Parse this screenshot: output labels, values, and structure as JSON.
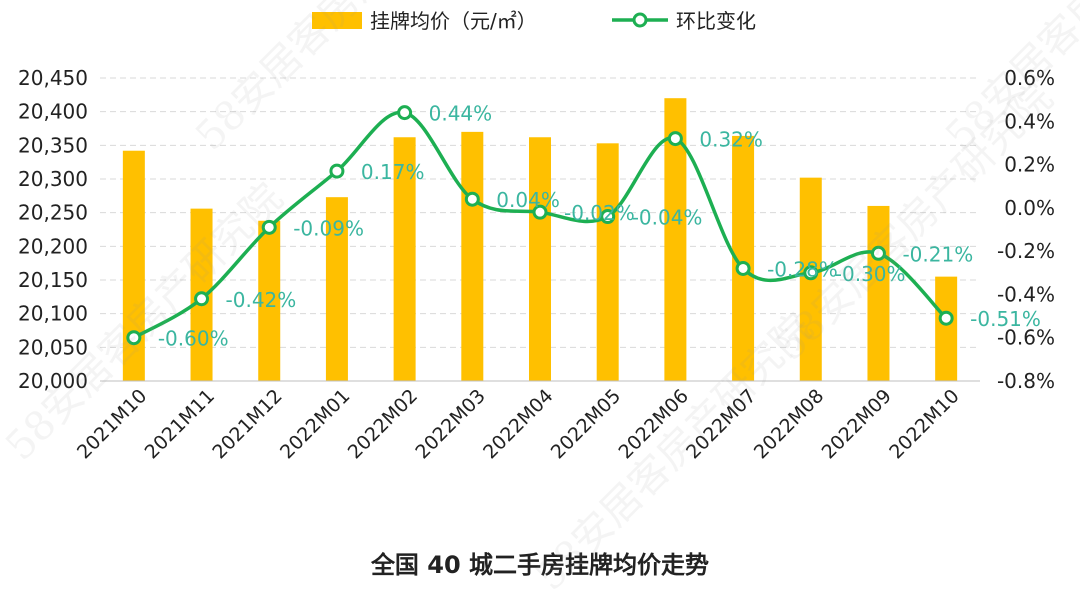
{
  "chart_data": {
    "type": "bar",
    "title": "全国 40 城二手房挂牌均价走势",
    "categories": [
      "2021M10",
      "2021M11",
      "2021M12",
      "2022M01",
      "2022M02",
      "2022M03",
      "2022M04",
      "2022M05",
      "2022M06",
      "2022M07",
      "2022M08",
      "2022M09",
      "2022M10"
    ],
    "series": [
      {
        "name": "挂牌均价（元/㎡）",
        "type": "bar",
        "axis": "left",
        "color": "#FFC000",
        "values": [
          20342,
          20256,
          20238,
          20273,
          20362,
          20370,
          20362,
          20353,
          20420,
          20364,
          20302,
          20260,
          20155
        ]
      },
      {
        "name": "环比变化",
        "type": "line",
        "axis": "right",
        "color": "#1DAF52",
        "values": [
          -0.6,
          -0.42,
          -0.09,
          0.17,
          0.44,
          0.04,
          -0.02,
          -0.04,
          0.32,
          -0.28,
          -0.3,
          -0.21,
          -0.51
        ],
        "labels": [
          "-0.60%",
          "-0.42%",
          "-0.09%",
          "0.17%",
          "0.44%",
          "0.04%",
          "-0.02%",
          "-0.04%",
          "0.32%",
          "-0.28%",
          "-0.30%",
          "-0.21%",
          "-0.51%"
        ]
      }
    ],
    "left_axis": {
      "ylim": [
        20000,
        20450
      ],
      "ticks": [
        20000,
        20050,
        20100,
        20150,
        20200,
        20250,
        20300,
        20350,
        20400,
        20450
      ],
      "tick_labels": [
        "20,000",
        "20,050",
        "20,100",
        "20,150",
        "20,200",
        "20,250",
        "20,300",
        "20,350",
        "20,400",
        "20,450"
      ]
    },
    "right_axis": {
      "ylim": [
        -0.8,
        0.6
      ],
      "ticks": [
        -0.8,
        -0.6,
        -0.4,
        -0.2,
        0.0,
        0.2,
        0.4,
        0.6
      ],
      "tick_labels": [
        "-0.8%",
        "-0.6%",
        "-0.4%",
        "-0.2%",
        "0.0%",
        "0.2%",
        "0.4%",
        "0.6%"
      ]
    },
    "grid": true,
    "legend_position": "top-center"
  },
  "watermark": "58安居客房产研究院"
}
